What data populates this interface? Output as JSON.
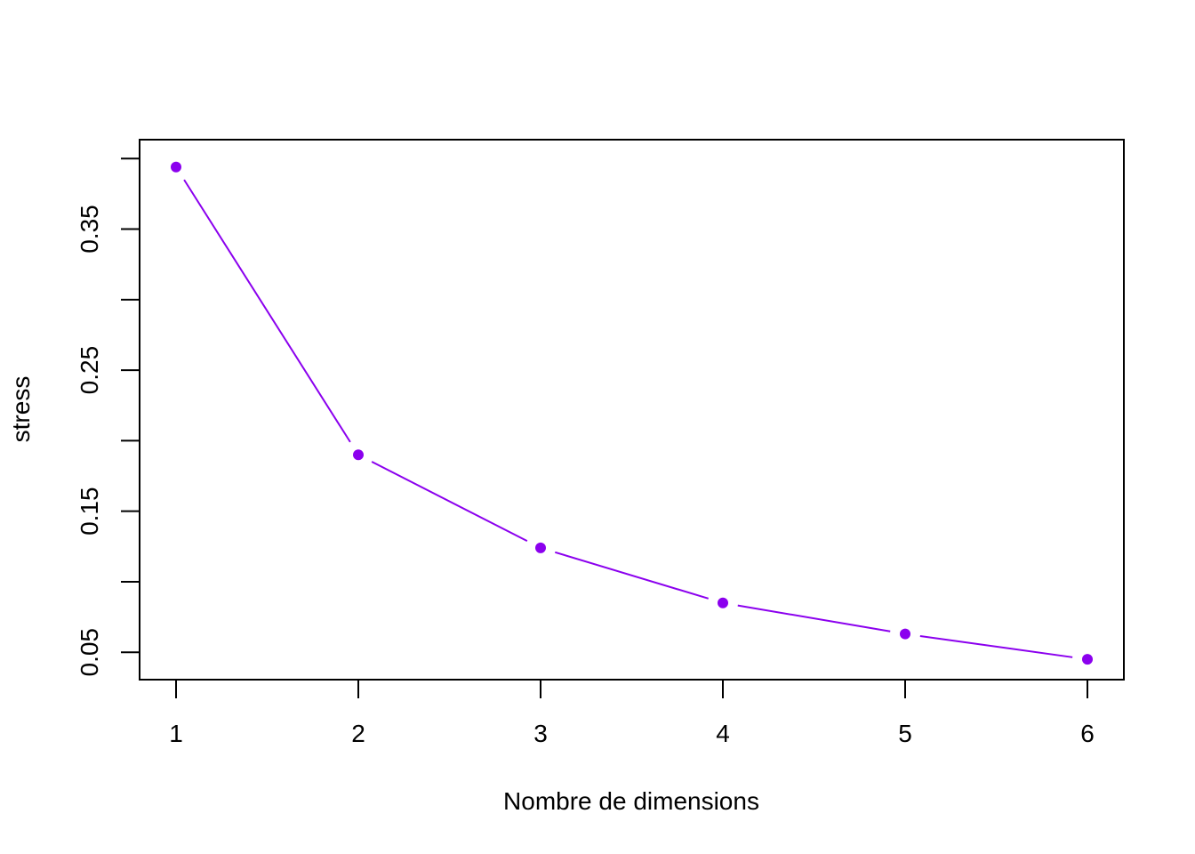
{
  "chart_data": {
    "type": "line",
    "title": "",
    "xlabel": "Nombre de dimensions",
    "ylabel": "stress",
    "x": [
      1,
      2,
      3,
      4,
      5,
      6
    ],
    "series": [
      {
        "values": [
          0.394,
          0.19,
          0.124,
          0.085,
          0.063,
          0.045
        ],
        "color": "#8B00EE",
        "marker": "filled-circle",
        "line_style": "solid-with-gaps"
      }
    ],
    "xticks": [
      1,
      2,
      3,
      4,
      5,
      6
    ],
    "xtick_labels": [
      "1",
      "2",
      "3",
      "4",
      "5",
      "6"
    ],
    "yticks": [
      0.05,
      0.1,
      0.15,
      0.2,
      0.25,
      0.3,
      0.35,
      0.4
    ],
    "ytick_labels": [
      "0.05",
      "",
      "0.15",
      "",
      "0.25",
      "",
      "0.35",
      ""
    ],
    "xlim": [
      0.8,
      6.2
    ],
    "ylim": [
      0.0306,
      0.4134
    ],
    "grid": false,
    "legend": "none"
  }
}
